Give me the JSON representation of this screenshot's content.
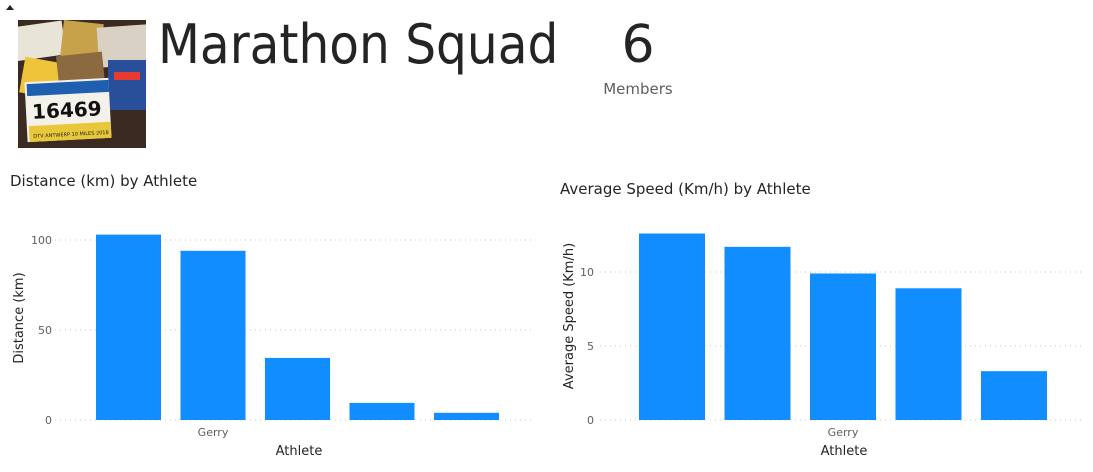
{
  "header": {
    "title": "Marathon Squad",
    "members_count": "6",
    "members_label": "Members",
    "photo_text": "16469",
    "photo_caption": "DTV ANTWERP 10 MILES 2018"
  },
  "chart_data": [
    {
      "type": "bar",
      "title": "Distance (km) by Athlete",
      "xlabel": "Athlete",
      "ylabel": "Distance (km)",
      "categories": [
        "",
        "Gerry",
        "",
        "",
        ""
      ],
      "values": [
        103,
        94,
        34.5,
        9.5,
        4
      ],
      "ylim": [
        0,
        105
      ],
      "yticks": [
        "0",
        "50",
        "100"
      ],
      "grid": true,
      "color": "#118DFF"
    },
    {
      "type": "bar",
      "title": "Average Speed (Km/h) by Athlete",
      "xlabel": "Athlete",
      "ylabel": "Average Speed (Km/h)",
      "categories": [
        "",
        "",
        "Gerry",
        "",
        ""
      ],
      "values": [
        12.6,
        11.7,
        9.9,
        8.9,
        3.3
      ],
      "ylim": [
        0,
        13
      ],
      "yticks": [
        "0",
        "5",
        "10"
      ],
      "grid": true,
      "color": "#118DFF"
    }
  ]
}
